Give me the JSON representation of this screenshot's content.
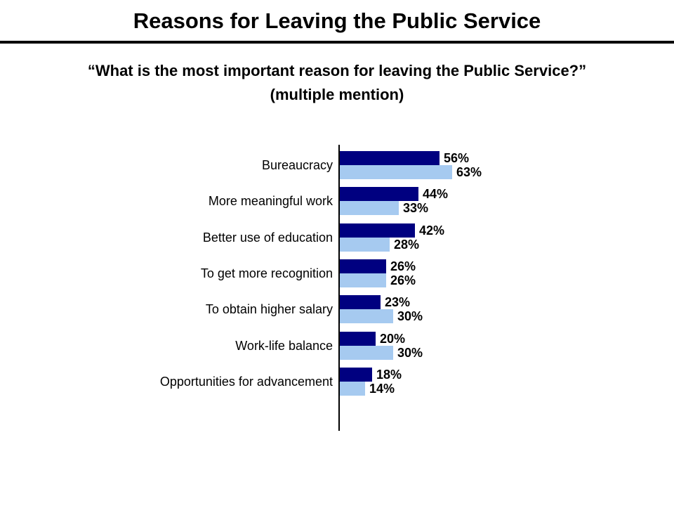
{
  "slide": {
    "title": "Reasons for Leaving the Public Service",
    "subtitle_line1": "“What is the most important reason for leaving the Public Service?”",
    "subtitle_line2": "(multiple mention)"
  },
  "colors": {
    "background": "#FFFFFF",
    "text": "#000000",
    "axis": "#000000",
    "series_dark": "#000080",
    "series_light": "#A6CAF0"
  },
  "chart_data": {
    "type": "bar",
    "orientation": "horizontal",
    "title": "",
    "xlabel": "",
    "ylabel": "",
    "xlim": [
      0,
      70
    ],
    "grid": false,
    "legend_position": "none",
    "value_suffix": "%",
    "categories": [
      "Bureaucracy",
      "More meaningful work",
      "Better use of education",
      "To get more recognition",
      "To obtain higher salary",
      "Work-life balance",
      "Opportunities for advancement"
    ],
    "series": [
      {
        "name": "series-dark",
        "color": "#000080",
        "values": [
          56,
          44,
          42,
          26,
          23,
          20,
          18
        ]
      },
      {
        "name": "series-light",
        "color": "#A6CAF0",
        "values": [
          63,
          33,
          28,
          26,
          30,
          30,
          14
        ]
      }
    ]
  }
}
